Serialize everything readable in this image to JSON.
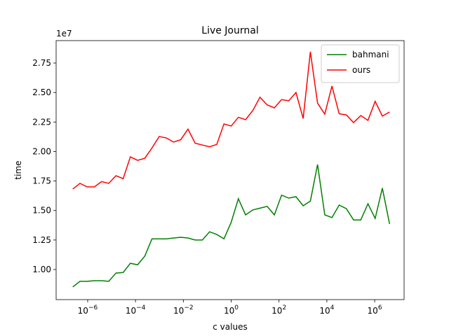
{
  "chart_data": {
    "type": "line",
    "title": "Live Journal",
    "x_label": "c values",
    "y_label": "time",
    "y_offset_label": "1e7",
    "xscale": "log",
    "x": [
      2.384185791015625e-07,
      4.76837158203125e-07,
      9.5367431640625e-07,
      1.9073486328125e-06,
      3.814697265625e-06,
      7.62939453125e-06,
      1.52587890625e-05,
      3.0517578125e-05,
      6.103515625e-05,
      0.0001220703125,
      0.000244140625,
      0.00048828125,
      0.0009765625,
      0.001953125,
      0.00390625,
      0.0078125,
      0.015625,
      0.03125,
      0.0625,
      0.125,
      0.25,
      0.5,
      1,
      2,
      4,
      8,
      16,
      32,
      64,
      128,
      256,
      512,
      1024,
      2048,
      4096,
      8192,
      16384,
      32768,
      65536,
      131072,
      262144,
      524288,
      1048576,
      2097152,
      4194304
    ],
    "series": [
      {
        "name": "bahmani",
        "color": "#008000",
        "values": [
          8520000,
          9000000,
          9000000,
          9050000,
          9050000,
          9000000,
          9700000,
          9750000,
          10530000,
          10400000,
          11130000,
          12600000,
          12600000,
          12600000,
          12670000,
          12730000,
          12670000,
          12500000,
          12500000,
          13200000,
          12970000,
          12600000,
          14000000,
          16000000,
          14630000,
          15050000,
          15200000,
          15350000,
          14630000,
          16300000,
          16050000,
          16170000,
          15400000,
          15800000,
          18900000,
          14630000,
          14400000,
          15460000,
          15160000,
          14200000,
          14200000,
          15570000,
          14330000,
          16900000,
          13860000
        ]
      },
      {
        "name": "ours",
        "color": "#ff0000",
        "values": [
          16820000,
          17300000,
          17000000,
          17000000,
          17450000,
          17300000,
          17950000,
          17700000,
          19550000,
          19250000,
          19430000,
          20300000,
          21270000,
          21150000,
          20800000,
          21000000,
          21900000,
          20700000,
          20550000,
          20400000,
          20600000,
          22340000,
          22160000,
          22900000,
          22700000,
          23470000,
          24600000,
          23950000,
          23700000,
          24400000,
          24300000,
          25000000,
          22800000,
          28450000,
          24100000,
          23170000,
          25550000,
          23200000,
          23100000,
          22450000,
          23050000,
          22640000,
          24250000,
          23000000,
          23350000
        ]
      }
    ],
    "xlim": [
      4.8e-08,
      17000000.0
    ],
    "xticks": [
      {
        "value": 1e-06,
        "label": "10",
        "exponent": "−6"
      },
      {
        "value": 0.0001,
        "label": "10",
        "exponent": "−4"
      },
      {
        "value": 0.01,
        "label": "10",
        "exponent": "−2"
      },
      {
        "value": 1,
        "label": "10",
        "exponent": "0"
      },
      {
        "value": 100,
        "label": "10",
        "exponent": "2"
      },
      {
        "value": 10000,
        "label": "10",
        "exponent": "4"
      },
      {
        "value": 1000000,
        "label": "10",
        "exponent": "6"
      }
    ],
    "ylim": [
      7450000,
      29400000
    ],
    "yticks": [
      {
        "value": 10000000,
        "label": "1.00"
      },
      {
        "value": 12500000,
        "label": "1.25"
      },
      {
        "value": 15000000,
        "label": "1.50"
      },
      {
        "value": 17500000,
        "label": "1.75"
      },
      {
        "value": 20000000,
        "label": "2.00"
      },
      {
        "value": 22500000,
        "label": "2.25"
      },
      {
        "value": 25000000,
        "label": "2.50"
      },
      {
        "value": 27500000,
        "label": "2.75"
      }
    ],
    "grid": false,
    "legend": "upper right"
  }
}
